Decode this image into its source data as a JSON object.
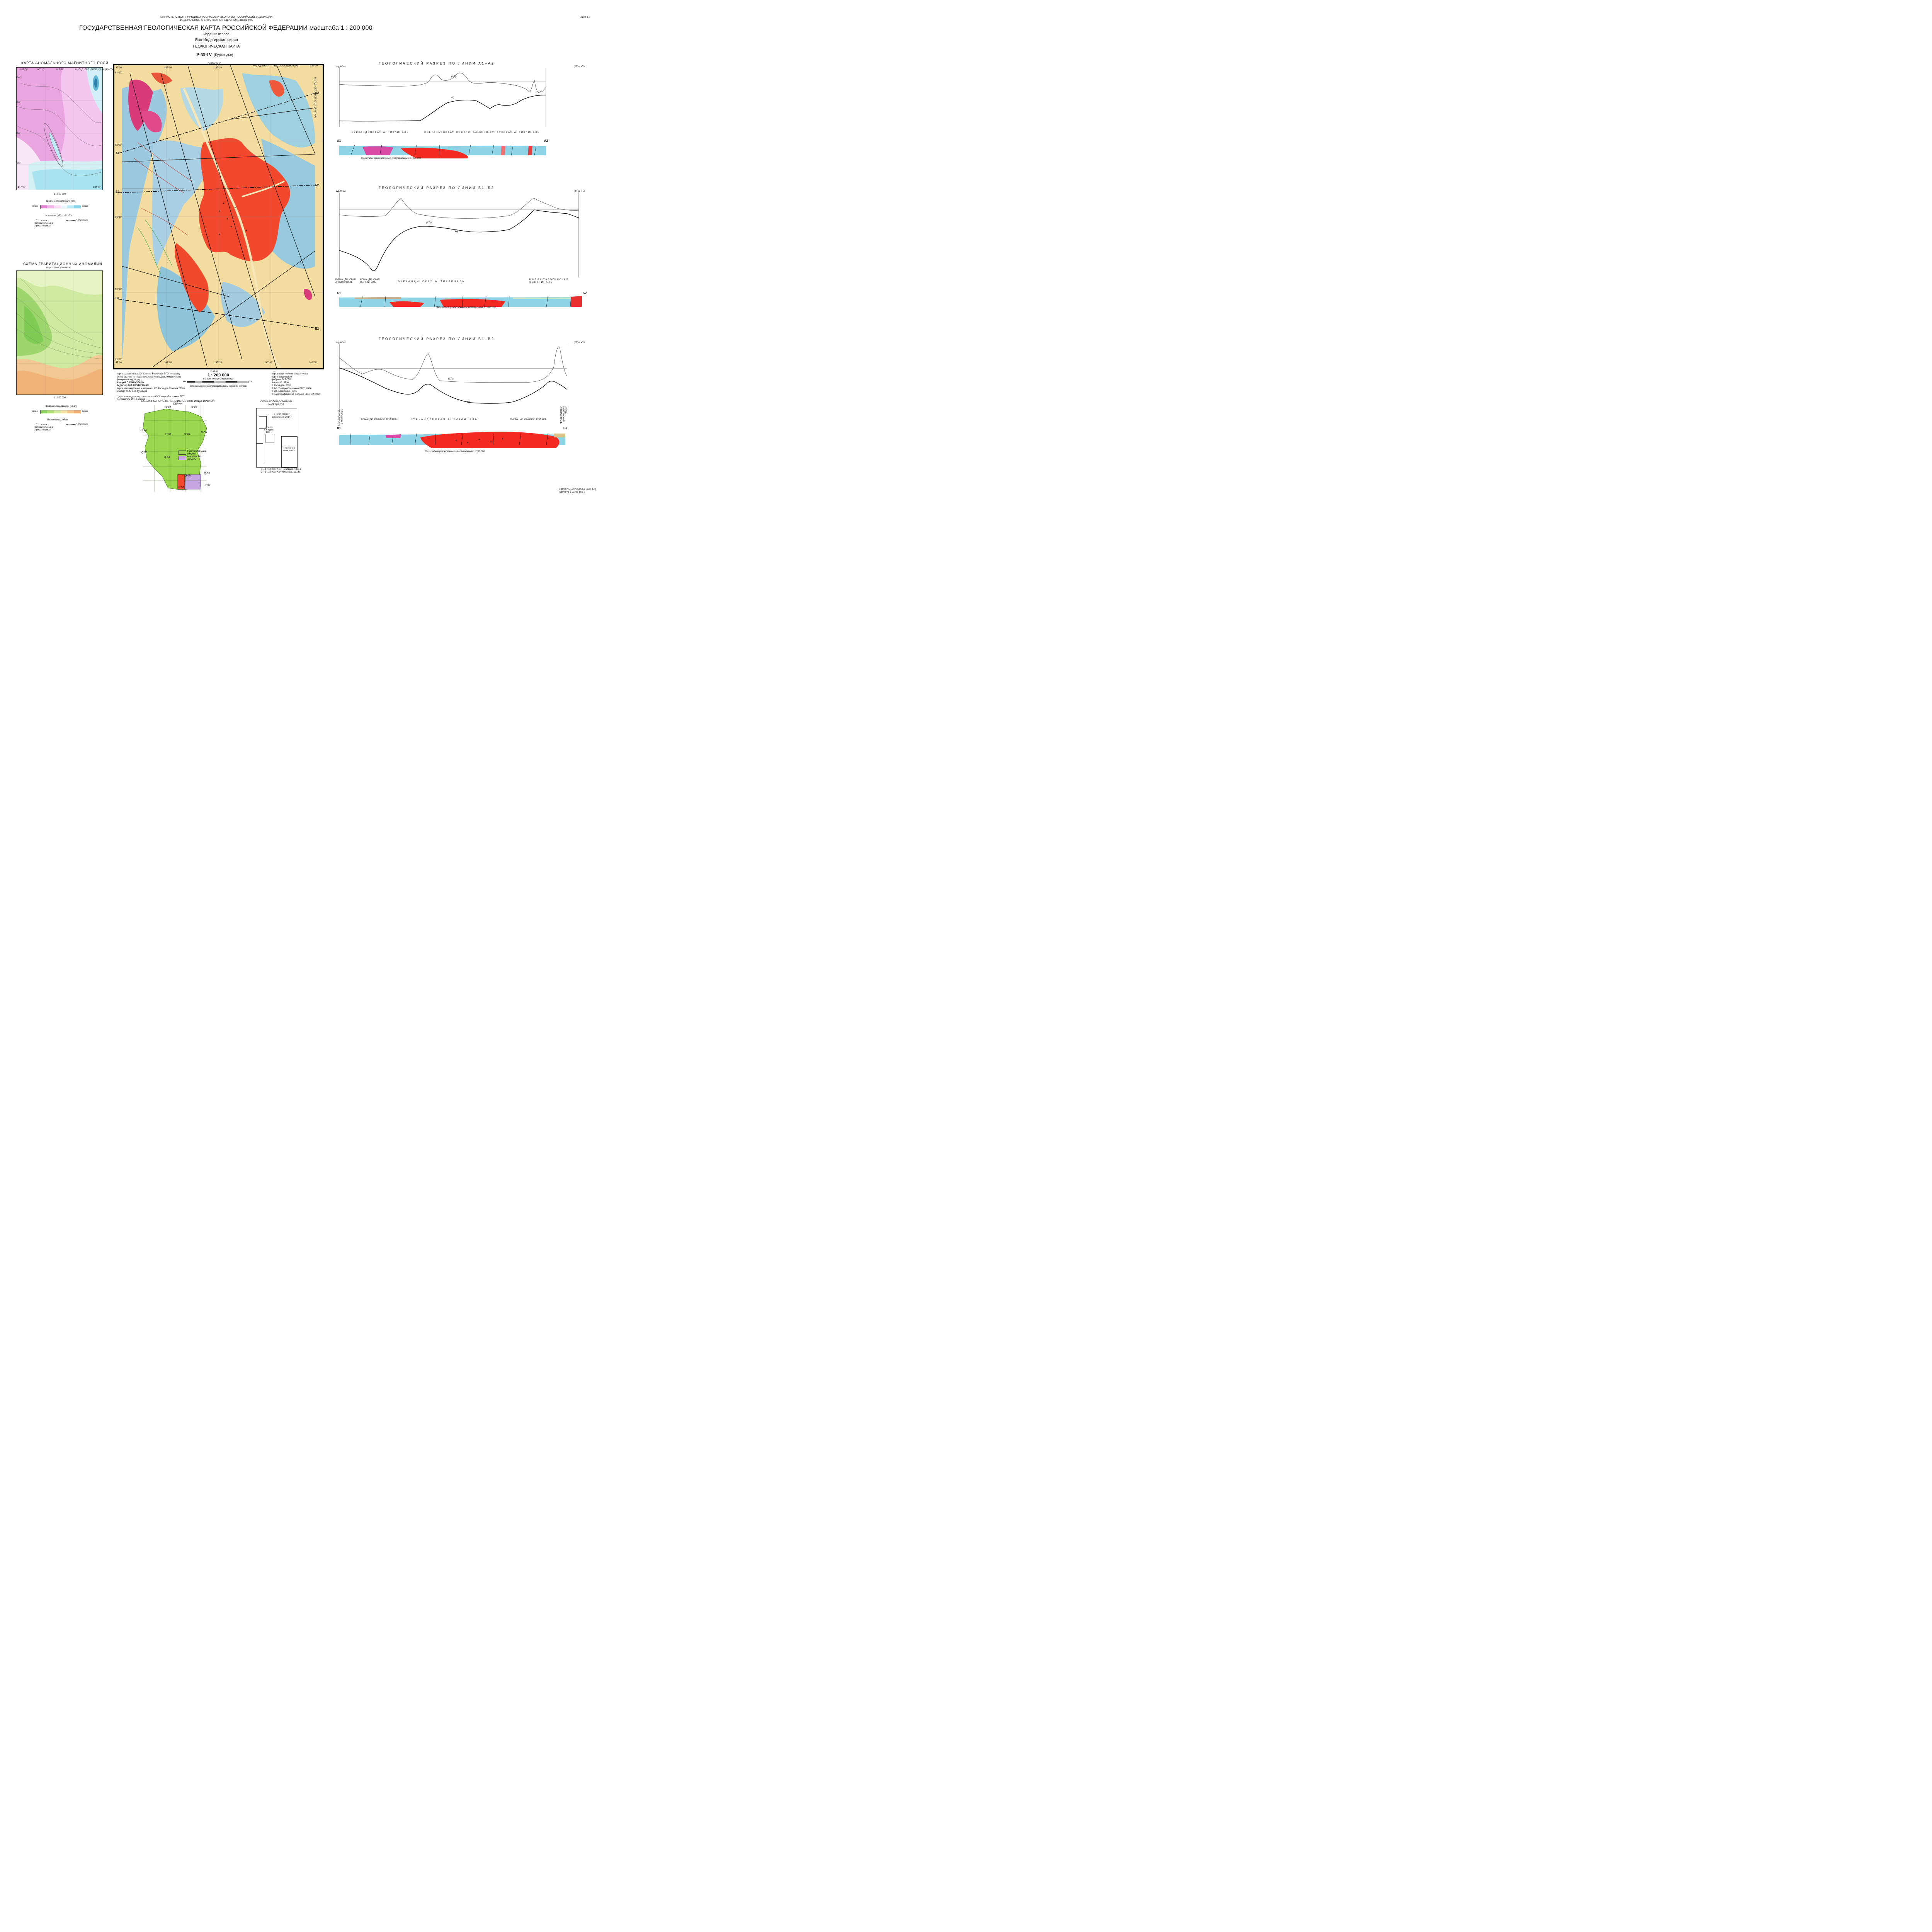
{
  "header": {
    "ministry": "МИНИСТЕРСТВО ПРИРОДНЫХ РЕСУРСОВ И ЭКОЛОГИИ РОССИЙСКОЙ ФЕДЕРАЦИИ",
    "agency": "ФЕДЕРАЛЬНОЕ АГЕНТСТВО ПО НЕДРОПОЛЬЗОВАНИЮ",
    "title": "ГОСУДАРСТВЕННАЯ ГЕОЛОГИЧЕСКАЯ КАРТА РОССИЙСКОЙ ФЕДЕРАЦИИ масштаба 1 : 200 000",
    "edition": "Издание второе",
    "series": "Яно-Индигирская серия",
    "map_type": "ГЕОЛОГИЧЕСКАЯ КАРТА",
    "sheet": "P-55-IV",
    "sheet_name": "(Буркандья)",
    "sheet_label": "Лист 1-3"
  },
  "magnetic": {
    "title": "КАРТА АНОМАЛЬНОГО МАГНИТНОГО ПОЛЯ",
    "coords_top": [
      "147°00'",
      "147°10'",
      "147°30'",
      "147°40'",
      "148°00'"
    ],
    "region_top": "МАГАД. ОБЛ. РЕСП. САХА (ЯКУТИЯ)",
    "lat_left": [
      "64°",
      "63°",
      "63°",
      "63°"
    ],
    "scale": "1 : 500 000",
    "scale_title": "Шкала интенсивности (нТл)",
    "scale_low": "ниже",
    "scale_high": "выше",
    "isolines": "Изолинии (ΔT)а·10², нТл",
    "pos_neg": "Положительные и отрицательные",
    "zero": "Нулевые",
    "colors": [
      "#e58bd6",
      "#f2b6e8",
      "#f7d9f2",
      "#e9f3fb",
      "#bde7f3",
      "#8fd8ec"
    ]
  },
  "gravity": {
    "title": "СХЕМА ГРАВИТАЦИОННЫХ АНОМАЛИЙ",
    "subtitle": "(оцифровка условная)",
    "scale": "1 : 500 000",
    "scale_title": "Шкала интенсивности (мГал)",
    "scale_low": "ниже",
    "scale_high": "выше",
    "isolines": "Изолинии Δg, мГал",
    "pos_neg": "Положительные и отрицательные",
    "zero": "Нулевые",
    "colors": [
      "#8fd460",
      "#b3e07b",
      "#d2ec9c",
      "#f6e3a6",
      "#f6c88c",
      "#f2ad72"
    ]
  },
  "main_map": {
    "coords_top": [
      "147°00'",
      "147°10'",
      "147°20'",
      "147°30'",
      "147°40'",
      "147°50'",
      "148°00'"
    ],
    "coords_bottom": [
      "147°00'",
      "147°10'",
      "147°20'",
      "147°30'",
      "147°40'",
      "147°50'",
      "148°00'"
    ],
    "lat_left": [
      "64°00'",
      "63°50'",
      "63°40'",
      "63°30'",
      "63°20'"
    ],
    "region_top_left": "МАГАД. ОБЛ.",
    "region_top_right": "РЕСП. САХА (ЯКУТИЯ)",
    "region_right": "МАГАД. ОБЛ. РЕСП. САХА (ЯКУТИЯ)",
    "sheet_top": "Q-55-XXXIV",
    "sheet_bottom": "P-55-X",
    "markers": [
      "A1",
      "A2",
      "Б1",
      "Б2",
      "В1",
      "В2"
    ],
    "scale": "1 : 200 000",
    "scale_note": "в 1 сантиметре 2 километра",
    "scale_unit": "км",
    "scale_ticks": [
      "4",
      "2",
      "0",
      "2",
      "4",
      "6",
      "8",
      "10",
      "12"
    ],
    "contour_note": "Сплошные горизонтали проведены через 80 метров"
  },
  "credits_left": [
    "Карта составлена в АО \"Северо-Восточное ПГО\" по заказу",
    "Департамента по недропользованию по Дальневосточному",
    "федеральному округу",
    "Автор В.Г. ЕРМОЛЕНКО",
    "Редактор В.И. ШПИКЕРМАН",
    "Карта рекомендована к изданию НРС Роснедра 29 июня 2016 г.",
    "Эксперт НРС В.М. Кузнецов",
    "",
    "Цифровая модель подготовлена в АО \"Северо-Восточное ПГО\"",
    "Составитель И.Н. Горячев"
  ],
  "credits_right": [
    "Карта подготовлена к изданию на Картографической",
    "фабрике ВСЕГЕИ",
    "Заказ 41915500",
    "© Роснедра, 2020",
    "© АО \"Северо-Восточное ПГО\", 2016",
    "© В.Г. Ермоленко, 2016",
    "© Картографическая фабрика ВСЕГЕИ, 2020"
  ],
  "layout_scheme": {
    "title": "СХЕМА РАСПОЛОЖЕНИЯ ЛИСТОВ ЯНО-ИНДИГИРСКОЙ СЕРИИ",
    "sheets": [
      "S-54",
      "S-55",
      "R-53",
      "R-54",
      "R-55",
      "R-56",
      "Q-53",
      "Q-54",
      "Q-55",
      "Q-56",
      "P-55"
    ],
    "legend_1": "Республика Саха (Якутия)",
    "legend_2": "Магаданская область"
  },
  "materials_scheme": {
    "title": "СХЕМА ИСПОЛЬЗОВАННЫХ МАТЕРИАЛОВ",
    "box_main": "1 : 200 000 В.Г. Ермоленко, 2014 г.",
    "box_a": "1 : 50 000 В.В. Курин, 1967 г.",
    "box_b": "1 : 50 000 Б.Н. Шаев, 1968 г.",
    "note_1": "1 – 1 : 50 000, А.Е. Нагаленко, 1974 г.",
    "note_2": "2 – 1 : 25 000, А.Ф. Николаев, 1972 г."
  },
  "sections": [
    {
      "title": "ГЕОЛОГИЧЕСКИЙ РАЗРЕЗ ПО ЛИНИИ А1–А2",
      "left_axis": "Δg, мГал",
      "right_axis": "(ΔT)а, нТл",
      "curve_t": "(ΔT)а",
      "curve_g": "Δg",
      "structures": [
        "БУРКАНДИНСКАЯ АНТИКЛИНАЛЬ",
        "СИЕТАНЬИНСКАЯ СИНКЛИНАЛЬ",
        "ЛЕВО-КУНТУКСКАЯ АНТИКЛИНАЛЬ"
      ],
      "start": "А1",
      "end": "А2",
      "scale_note": "Масштабы горизонтальный и вертикальный 1 : 200 000",
      "g_ticks": [
        "2",
        "0",
        "-2",
        "-4",
        "-6",
        "-8",
        "-10",
        "-12",
        "-14",
        "-16",
        "-18",
        "-20",
        "-22"
      ],
      "t_ticks": [
        "100",
        "50",
        "0",
        "-50",
        "-100",
        "-150",
        "-200",
        "-250",
        "-300",
        "-350",
        "-400",
        "-450",
        "-500",
        "-550"
      ]
    },
    {
      "title": "ГЕОЛОГИЧЕСКИЙ РАЗРЕЗ ПО ЛИНИИ Б1–Б2",
      "left_axis": "Δg, мГал",
      "right_axis": "(ΔT)а, нТл",
      "curve_t": "(ΔT)а",
      "curve_g": "Δg",
      "structures": [
        "БУРКАНДИНСКАЯ АНТИКЛИНАЛЬ",
        "КОМАНДИНСКАЯ СИНКЛИНАЛЬ",
        "БУРКАНДИНСКАЯ АНТИКЛИНАЛЬ",
        "МАЛЫК-ТАБОГИНСКАЯ СИНКЛИНАЛЬ"
      ],
      "start": "Б1",
      "end": "Б2",
      "scale_note": "Масштабы горизонтальный и вертикальный 1 : 200 000",
      "g_ticks": [
        "6",
        "4",
        "2",
        "0",
        "-2",
        "-4",
        "-6",
        "-8",
        "-10",
        "-12",
        "-14",
        "-16",
        "-18",
        "-20",
        "-22",
        "-24",
        "-26",
        "-28",
        "-30",
        "-32",
        "-34"
      ],
      "t_ticks": [
        "150",
        "100",
        "50",
        "0",
        "-50",
        "-100",
        "-150",
        "-200",
        "-250",
        "-300",
        "-350",
        "-400",
        "-450",
        "-500",
        "-550",
        "-600",
        "-650",
        "-700",
        "-750",
        "-800",
        "-850"
      ]
    },
    {
      "title": "ГЕОЛОГИЧЕСКИЙ РАЗРЕЗ ПО ЛИНИИ В1–В2",
      "left_axis": "Δg, мГал",
      "right_axis": "(ΔT)а, нТл",
      "curve_t": "(ΔT)а",
      "curve_g": "Δg",
      "structures": [
        "ЭЛЬГИНСКАЯ АНТИКЛИНАЛЬ",
        "КОМАНДИНСКАЯ СИНКЛИНАЛЬ",
        "БУРКАНДИНСКАЯ АНТИКЛИНАЛЬ",
        "СИЕТАНЬИНСКАЯ СИНКЛИНАЛЬ",
        "ЛЕВО-КУНТУКСКАЯ АНТИКЛИНАЛЬ"
      ],
      "start": "В1",
      "end": "В2",
      "scale_note": "Масштабы горизонтальный и вертикальный 1 : 200 000",
      "g_ticks": [
        "10",
        "8",
        "6",
        "4",
        "2",
        "0",
        "-2",
        "-4",
        "-6",
        "-8",
        "-10",
        "-12",
        "-14",
        "-16",
        "-18",
        "-20"
      ],
      "t_ticks": [
        "300",
        "250",
        "200",
        "150",
        "100",
        "50",
        "0",
        "-50",
        "-100",
        "-150",
        "-200",
        "-250",
        "-300",
        "-350",
        "-400"
      ]
    }
  ],
  "isbn_1": "ISBN 978-5-93761-851-7 (лист 1-3)",
  "isbn_2": "ISBN 978-5-93761-855-5",
  "geology_colors": {
    "quaternary": "#f2dca0",
    "granite": "#f2492e",
    "granite_dark": "#e03a22",
    "porphyry": "#d93a78",
    "jurassic": "#8fc6d8",
    "triassic": "#bcdde6",
    "permian": "#a3c9e3",
    "ridge": "#c8a77a"
  }
}
